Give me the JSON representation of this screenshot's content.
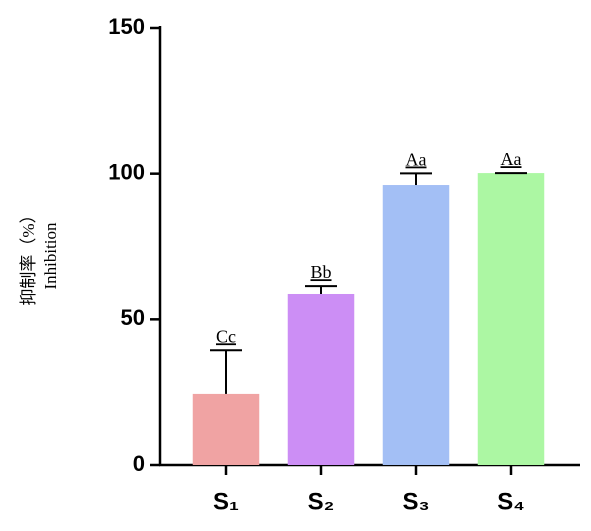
{
  "chart_data": {
    "type": "bar",
    "y_label": [
      "抑制率（%）",
      "Inhibition"
    ],
    "categories": [
      "S₁",
      "S₂",
      "S₃",
      "S₄"
    ],
    "values": [
      24.4,
      58.7,
      96.1,
      100.2
    ],
    "errors": [
      15,
      2.7,
      4,
      0
    ],
    "annotations": [
      "Cc",
      "Bb",
      "Aa",
      "Aa"
    ],
    "colors": [
      "#f0a3a3",
      "#cc8ef5",
      "#a3bff5",
      "#acf7a3"
    ],
    "ylim": [
      0,
      150
    ],
    "yticks": [
      0,
      50,
      100,
      150
    ],
    "grid": false
  }
}
